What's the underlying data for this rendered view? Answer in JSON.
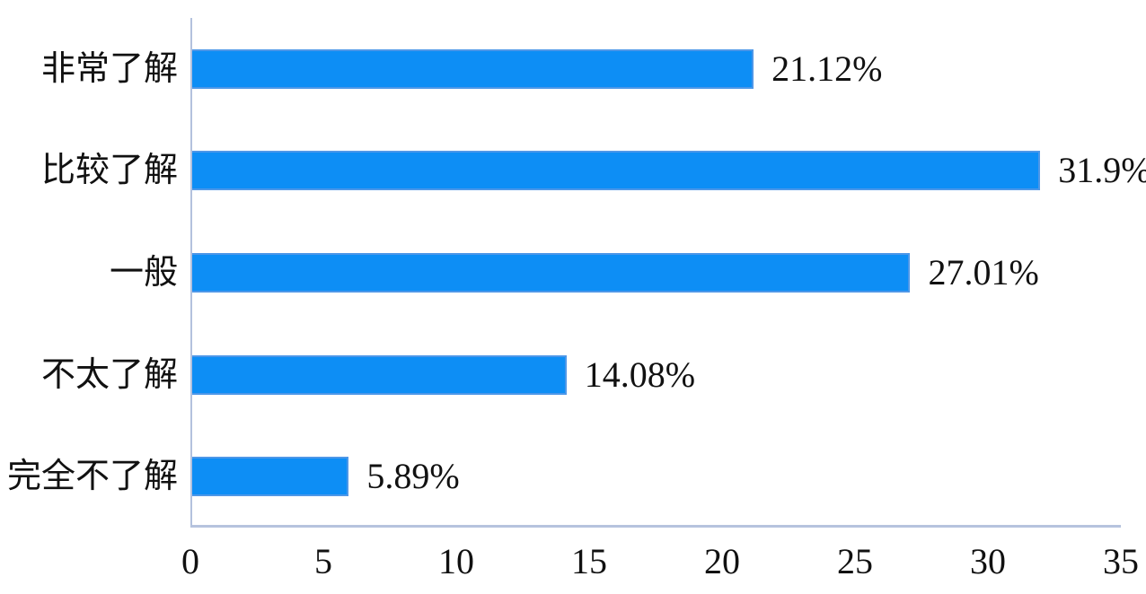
{
  "chart_data": {
    "type": "bar",
    "orientation": "horizontal",
    "title": "",
    "xlabel": "",
    "ylabel": "",
    "categories": [
      "非常了解",
      "比较了解",
      "一般",
      "不太了解",
      "完全不了解"
    ],
    "values": [
      21.12,
      31.9,
      27.01,
      14.08,
      5.89
    ],
    "value_labels": [
      "21.12%",
      "31.9%",
      "27.01%",
      "14.08%",
      "5.89%"
    ],
    "x_ticks": [
      0,
      5,
      10,
      15,
      20,
      25,
      30,
      35
    ],
    "xlim": [
      0,
      35
    ],
    "grid": false,
    "legend": false,
    "colors": {
      "bar_fill": "#0d8ef5",
      "bar_border": "#4d97e8",
      "axis_line": "#b3c1dd",
      "text": "#111111",
      "background": "#ffffff"
    }
  }
}
